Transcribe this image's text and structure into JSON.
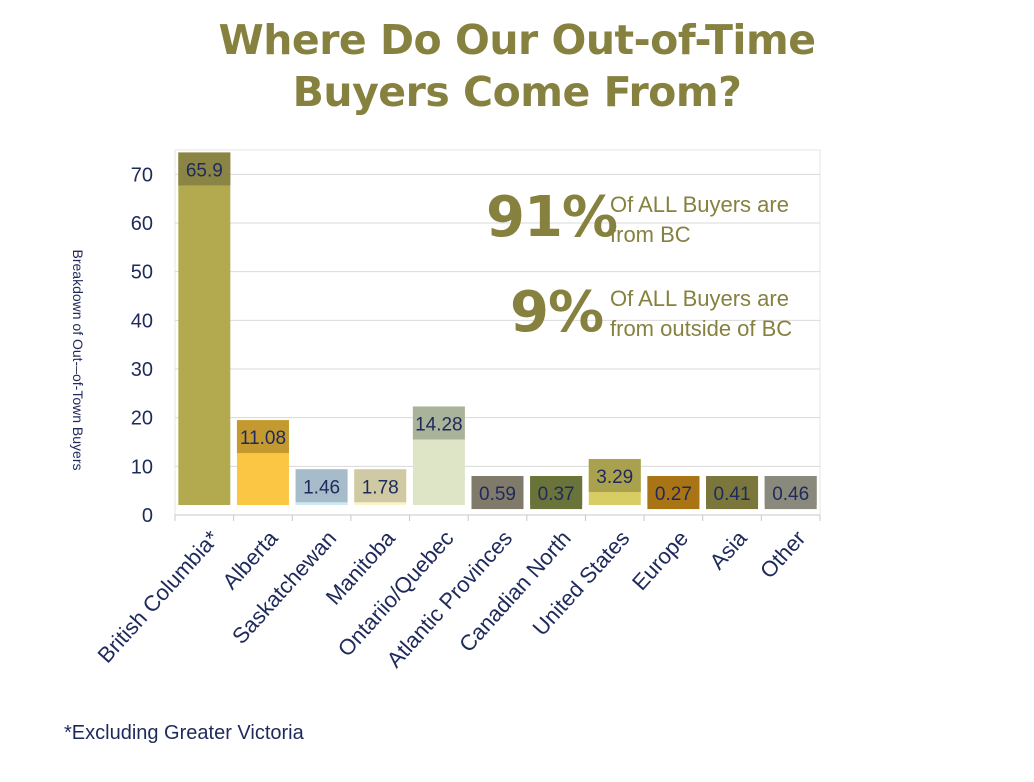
{
  "title_line1": "Where Do Our Out-of-Time",
  "title_line2": "Buyers Come From?",
  "ylabel": "Breakdown of Out-–of-Town Buyers",
  "footnote": "*Excluding Greater Victoria",
  "callouts": [
    {
      "big": "91%",
      "text_line1": "Of ALL Buyers are",
      "text_line2": "from BC"
    },
    {
      "big": "9%",
      "text_line1": "Of ALL Buyers are",
      "text_line2": "from outside of BC"
    }
  ],
  "colors": {
    "text_olive": "#86813f",
    "axis_text": "#1f2a5c",
    "grid": "#d9d9d9"
  },
  "chart_data": {
    "type": "bar",
    "title": "Where Do Our Out-of-Time Buyers Come From?",
    "ylabel": "Breakdown of Out-–of-Town Buyers",
    "ylim": [
      0,
      75
    ],
    "yticks": [
      0,
      10,
      20,
      30,
      40,
      50,
      60,
      70
    ],
    "grid": true,
    "categories": [
      "British Columbia*",
      "Alberta",
      "Saskatchewan",
      "Manitoba",
      "Ontariio/Quebec",
      "Atlantic Provinces",
      "Canadian North",
      "United States",
      "Europe",
      "Asia",
      "Other"
    ],
    "values": [
      65.9,
      11.08,
      1.46,
      1.78,
      14.28,
      0.59,
      0.37,
      3.29,
      0.27,
      0.41,
      0.46
    ],
    "bar_totals": [
      74.5,
      19.5,
      9.4,
      9.4,
      22.3,
      8.0,
      8.0,
      11.5,
      8.0,
      8.0,
      8.0
    ],
    "fill_colors": [
      "#b3aa4f",
      "#fbc644",
      "#cfe9f2",
      "#fbf3c9",
      "#dde5c6",
      "#928a7a",
      "#7a7e3d",
      "#d8cc64",
      "#b8860d",
      "#8a8547",
      "#9a9a8a"
    ],
    "label_colors": [
      "#8a8544",
      "#c49a30",
      "#a7bccb",
      "#cfc9a4",
      "#a9b39a",
      "#7f7a6a",
      "#6a7339",
      "#aaa14e",
      "#a87414",
      "#7a763c",
      "#8a8a7c"
    ]
  }
}
